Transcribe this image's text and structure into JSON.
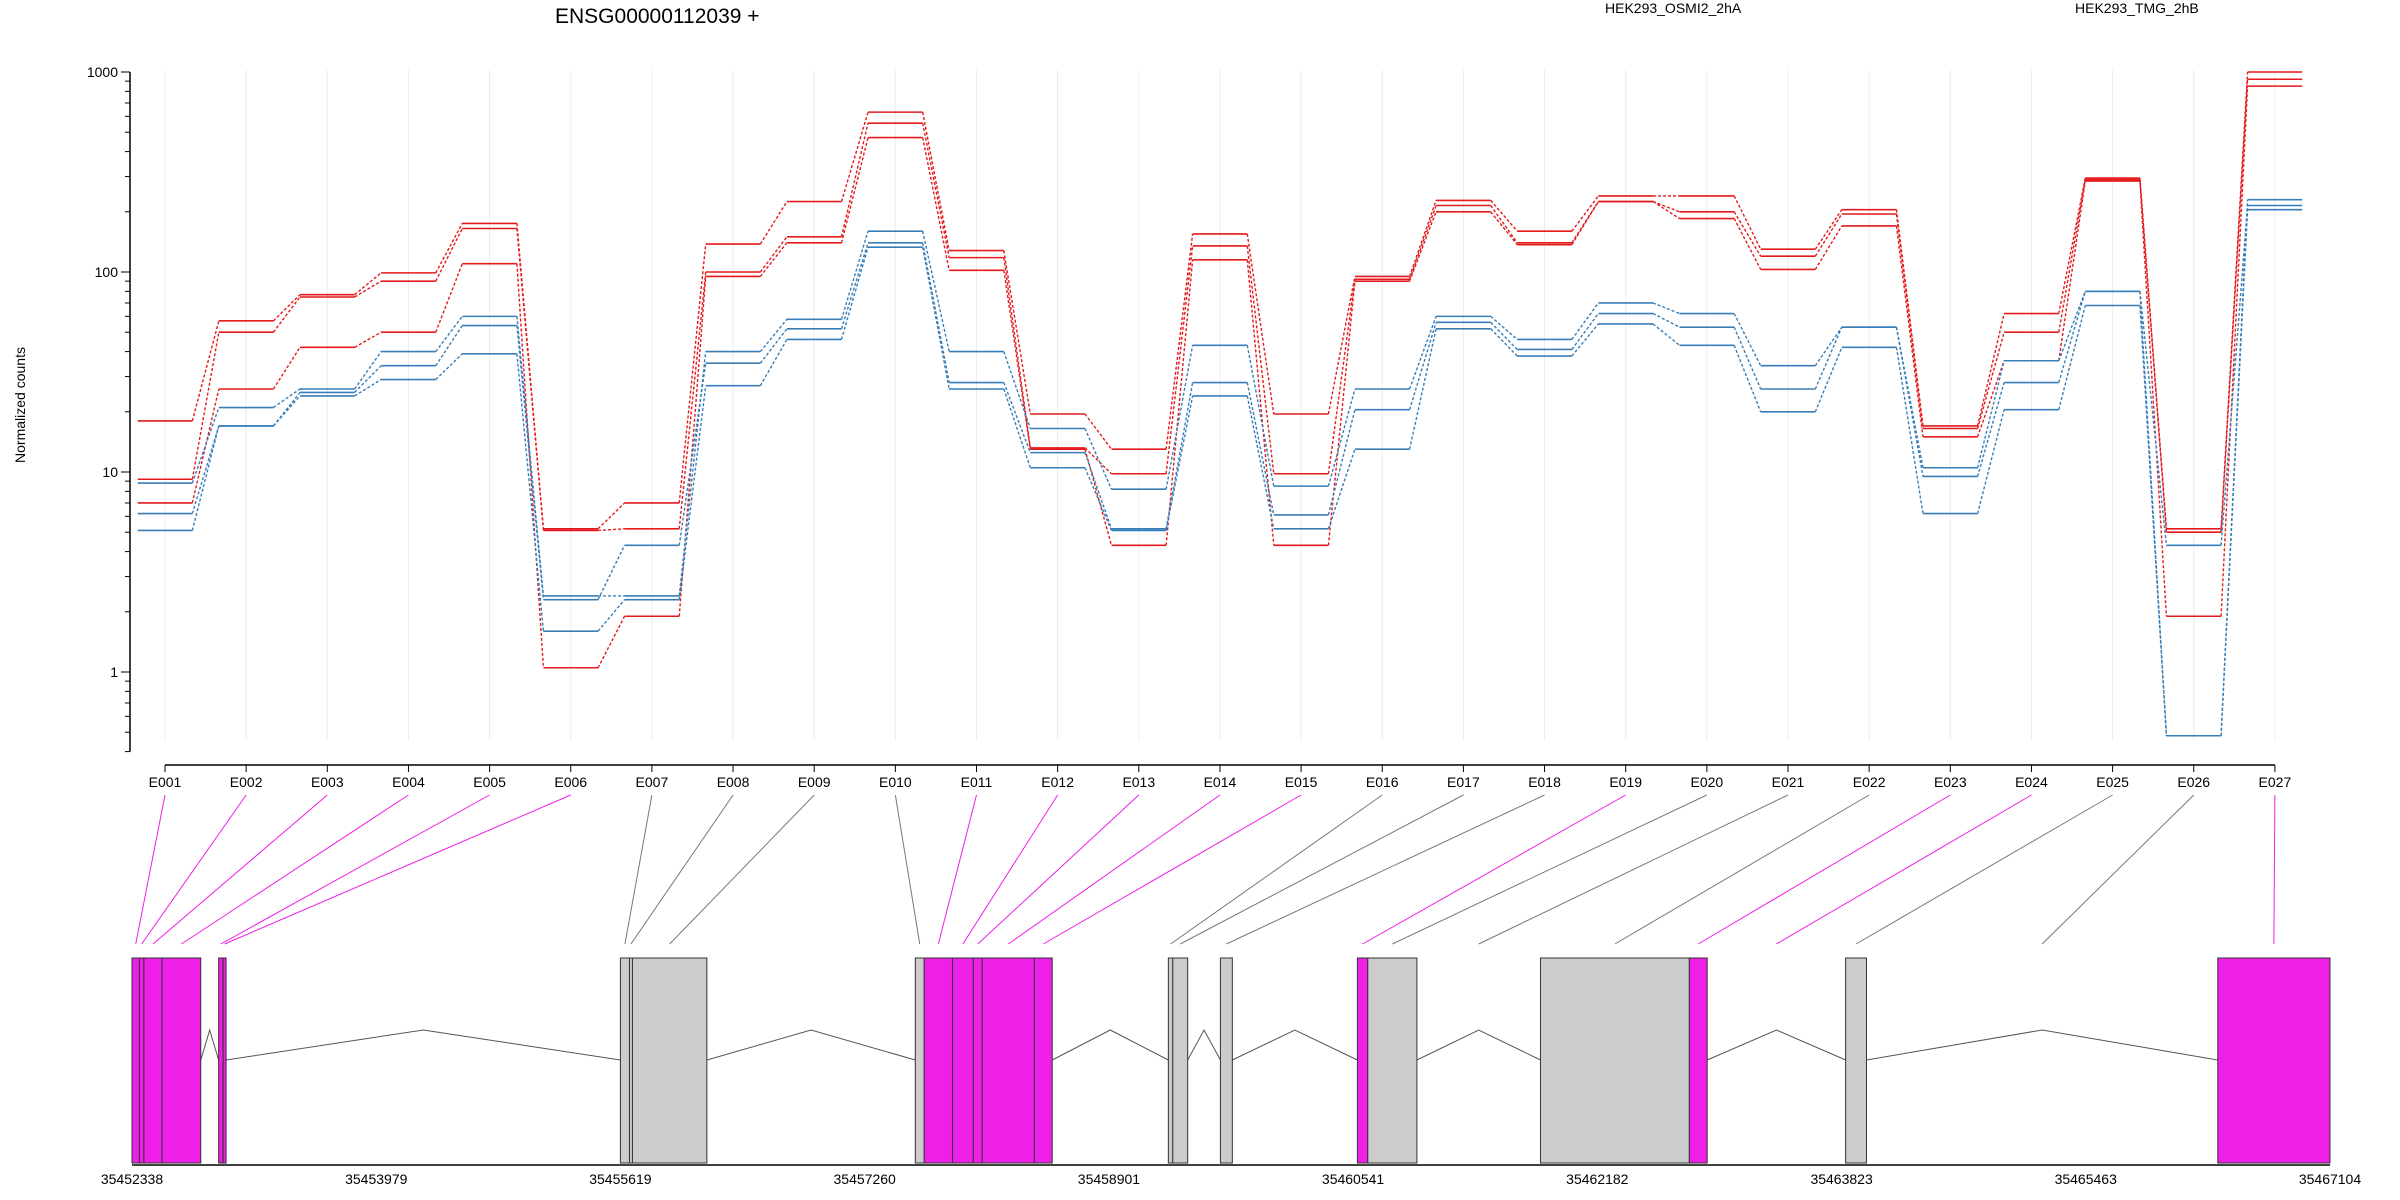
{
  "chart_data": {
    "type": "line",
    "title": "ENSG00000112039 +",
    "xlabel": "",
    "ylabel": "Normalized counts",
    "yscale": "log",
    "ylim": [
      0.4,
      1000
    ],
    "y_ticks": [
      "1000",
      "100",
      "10",
      "1"
    ],
    "categories": [
      "E001",
      "E002",
      "E003",
      "E004",
      "E005",
      "E006",
      "E007",
      "E008",
      "E009",
      "E010",
      "E011",
      "E012",
      "E013",
      "E014",
      "E015",
      "E016",
      "E017",
      "E018",
      "E019",
      "E020",
      "E021",
      "E022",
      "E023",
      "E024",
      "E025",
      "E026",
      "E027"
    ],
    "legend": [
      {
        "label": "HEK293_OSMI2_2hA",
        "color": "#e41a1c"
      },
      {
        "label": "HEK293_TMG_2hB",
        "color": "#377eb8"
      }
    ],
    "series": [
      {
        "group": "HEK293_OSMI2_2hA",
        "color": "#e41a1c",
        "values": [
          18,
          57,
          77,
          99,
          175,
          5.2,
          7,
          138,
          225,
          630,
          128,
          19.5,
          13,
          155,
          19.5,
          95,
          228,
          160,
          240,
          240,
          130,
          205,
          17,
          62,
          295,
          5.2,
          1000
        ]
      },
      {
        "group": "HEK293_OSMI2_2hA",
        "color": "#e41a1c",
        "values": [
          9.2,
          50,
          75,
          90,
          165,
          5.1,
          5.2,
          100,
          150,
          555,
          118,
          13.2,
          9.8,
          135,
          9.8,
          92,
          215,
          140,
          225,
          200,
          120,
          195,
          16.5,
          50,
          290,
          5.0,
          920
        ]
      },
      {
        "group": "HEK293_OSMI2_2hA",
        "color": "#e41a1c",
        "values": [
          7,
          26,
          42,
          50,
          110,
          1.05,
          1.9,
          95,
          140,
          470,
          102,
          13,
          4.3,
          115,
          4.3,
          90,
          200,
          137,
          225,
          185,
          103,
          170,
          15,
          36,
          285,
          1.9,
          850
        ]
      },
      {
        "group": "HEK293_TMG_2hB",
        "color": "#377eb8",
        "values": [
          8.8,
          21,
          26,
          40,
          60,
          2.4,
          2.4,
          40,
          58,
          160,
          40,
          16.5,
          8.2,
          43,
          8.5,
          26,
          60,
          46,
          70,
          62,
          34,
          53,
          10.5,
          36,
          80,
          0.48,
          230
        ]
      },
      {
        "group": "HEK293_TMG_2hB",
        "color": "#377eb8",
        "values": [
          6.2,
          17,
          25,
          34,
          54,
          2.3,
          4.3,
          35,
          52,
          140,
          28,
          12.5,
          5.2,
          28,
          6.1,
          20.5,
          56,
          41,
          62,
          53,
          26,
          53,
          9.5,
          28,
          80,
          4.3,
          215
        ]
      },
      {
        "group": "HEK293_TMG_2hB",
        "color": "#377eb8",
        "values": [
          5.1,
          17,
          24,
          29,
          39,
          1.6,
          2.3,
          27,
          46,
          133,
          26,
          10.5,
          5.1,
          24,
          5.2,
          13,
          52,
          38,
          55,
          43,
          20,
          42,
          6.2,
          20.5,
          68,
          0.48,
          205
        ]
      }
    ],
    "genomic_axis": {
      "tick_labels": [
        "35452338",
        "35453979",
        "35455619",
        "35457260",
        "35458901",
        "35460541",
        "35462182",
        "35463823",
        "35465463",
        "35467104"
      ]
    },
    "gene_model": {
      "segment_bounds": [
        [
          35452338,
          35452388
        ],
        [
          35452388,
          35452418
        ],
        [
          35452418,
          35452540
        ],
        [
          35452540,
          35452800
        ],
        [
          35452920,
          35452950
        ],
        [
          35452950,
          35452970
        ],
        [
          35455619,
          35455680
        ],
        [
          35455680,
          35455700
        ],
        [
          35455700,
          35456200
        ],
        [
          35457600,
          35457660
        ],
        [
          35457660,
          35457850
        ],
        [
          35457850,
          35457990
        ],
        [
          35457990,
          35458050
        ],
        [
          35458050,
          35458400
        ],
        [
          35458400,
          35458520
        ],
        [
          35459300,
          35459330
        ],
        [
          35459330,
          35459430
        ],
        [
          35459650,
          35459730
        ],
        [
          35460570,
          35460640
        ],
        [
          35460640,
          35460970
        ],
        [
          35461800,
          35462800
        ],
        [
          35462800,
          35462920
        ],
        [
          35463850,
          35463990
        ],
        [
          35466350,
          35467104
        ]
      ],
      "segment_to_exon": [
        1,
        2,
        3,
        4,
        5,
        6,
        7,
        8,
        9,
        10,
        11,
        12,
        13,
        14,
        15,
        16,
        17,
        18,
        19,
        20,
        22,
        23,
        25,
        27
      ],
      "highlighted_exons": [
        "E001",
        "E002",
        "E003",
        "E004",
        "E005",
        "E006",
        "E011",
        "E012",
        "E013",
        "E014",
        "E015",
        "E019",
        "E023",
        "E024",
        "E027"
      ],
      "colors": {
        "highlight": "#ee1fe6",
        "default": "#cccccc",
        "link_default": "#777777"
      }
    }
  }
}
